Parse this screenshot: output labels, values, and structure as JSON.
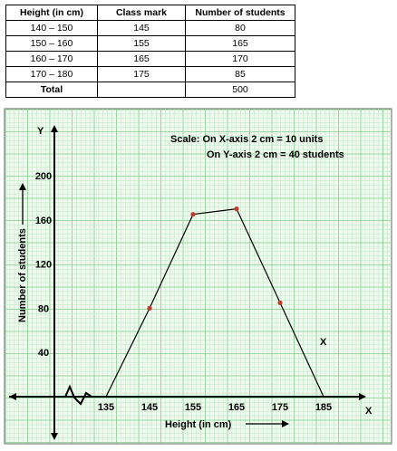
{
  "table": {
    "headers": [
      "Height (in cm)",
      "Class mark",
      "Number of students"
    ],
    "rows": [
      [
        "140 – 150",
        "145",
        "80"
      ],
      [
        "150 – 160",
        "155",
        "165"
      ],
      [
        "160 – 170",
        "165",
        "170"
      ],
      [
        "170 – 180",
        "175",
        "85"
      ]
    ],
    "total_label": "Total",
    "total_value": "500"
  },
  "graph": {
    "y_axis_letter": "Y",
    "x_axis_letter": "X",
    "stray_x_mark": "X",
    "scale_line1": "Scale: On X-axis 2 cm = 10 units",
    "scale_line2": "On Y-axis 2 cm = 40 students",
    "colors": {
      "grid_bg": "#eefaee",
      "grid_minor": "#b9e4bd",
      "grid_major": "#85cc8e",
      "point": "#c0392b",
      "line": "#000000"
    }
  },
  "chart_data": {
    "type": "line",
    "title": "",
    "xlabel": "Height (in cm)",
    "ylabel": "Number of students",
    "x_ticks": [
      135,
      145,
      155,
      165,
      175,
      185
    ],
    "y_ticks": [
      40,
      80,
      120,
      160,
      200
    ],
    "xlim": [
      130,
      190
    ],
    "ylim": [
      0,
      220
    ],
    "x_break": true,
    "series": [
      {
        "x": [
          135,
          145,
          155,
          165,
          175,
          185
        ],
        "values": [
          0,
          80,
          165,
          170,
          85,
          0
        ]
      }
    ],
    "marked_points": [
      {
        "x": 145,
        "y": 80
      },
      {
        "x": 155,
        "y": 165
      },
      {
        "x": 165,
        "y": 170
      },
      {
        "x": 175,
        "y": 85
      }
    ],
    "grid": true
  }
}
